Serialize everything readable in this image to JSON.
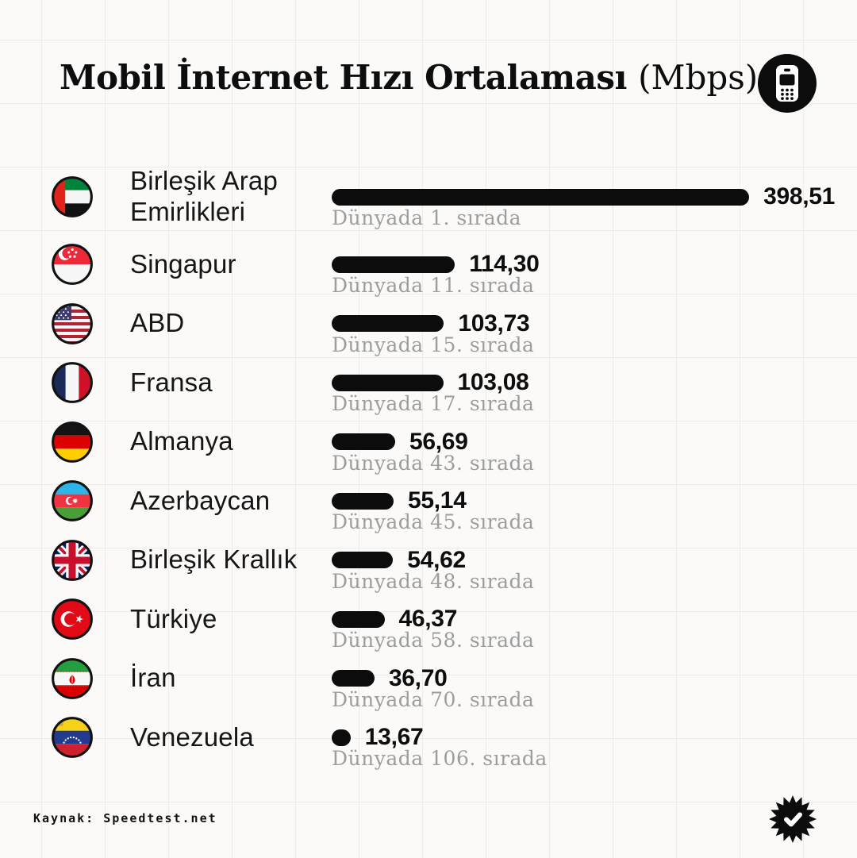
{
  "header": {
    "title_main": "Mobil İnternet Hızı Ortalaması",
    "title_unit": "(Mbps)",
    "icon": "mobile-phone-icon"
  },
  "footer": {
    "source_label": "Kaynak: Speedtest.net",
    "badge_icon": "starburst-check-icon"
  },
  "colors": {
    "background": "#fbfaf8",
    "grid_line": "#eeece9",
    "bar": "#0c0c0c",
    "title_text": "#0d0d0d",
    "country_text": "#161616",
    "rank_text": "#9d9d9d"
  },
  "chart_data": {
    "type": "bar",
    "orientation": "horizontal",
    "title": "Mobil İnternet Hızı Ortalaması (Mbps)",
    "unit": "Mbps",
    "source": "Kaynak: Speedtest.net",
    "xlim": [
      0,
      400
    ],
    "grid": "subtle background squares, no axes",
    "value_format": "comma decimal",
    "categories": [
      "Birleşik Arap Emirlikleri",
      "Singapur",
      "ABD",
      "Fransa",
      "Almanya",
      "Azerbaycan",
      "Birleşik Krallık",
      "Türkiye",
      "İran",
      "Venezuela"
    ],
    "values": [
      398.51,
      114.3,
      103.73,
      103.08,
      56.69,
      55.14,
      54.62,
      46.37,
      36.7,
      13.67
    ],
    "rows": [
      {
        "country": "Birleşik Arap Emirlikleri",
        "flag": "uae",
        "mbps": 398.51,
        "value_label": "398,51",
        "rank": 1,
        "rank_label": "Dünyada 1. sırada"
      },
      {
        "country": "Singapur",
        "flag": "singapore",
        "mbps": 114.3,
        "value_label": "114,30",
        "rank": 11,
        "rank_label": "Dünyada 11. sırada"
      },
      {
        "country": "ABD",
        "flag": "usa",
        "mbps": 103.73,
        "value_label": "103,73",
        "rank": 15,
        "rank_label": "Dünyada 15. sırada"
      },
      {
        "country": "Fransa",
        "flag": "france",
        "mbps": 103.08,
        "value_label": "103,08",
        "rank": 17,
        "rank_label": "Dünyada 17. sırada"
      },
      {
        "country": "Almanya",
        "flag": "germany",
        "mbps": 56.69,
        "value_label": "56,69",
        "rank": 43,
        "rank_label": "Dünyada 43. sırada"
      },
      {
        "country": "Azerbaycan",
        "flag": "azerbaijan",
        "mbps": 55.14,
        "value_label": "55,14",
        "rank": 45,
        "rank_label": "Dünyada 45. sırada"
      },
      {
        "country": "Birleşik Krallık",
        "flag": "united-kingdom",
        "mbps": 54.62,
        "value_label": "54,62",
        "rank": 48,
        "rank_label": "Dünyada 48. sırada"
      },
      {
        "country": "Türkiye",
        "flag": "turkey",
        "mbps": 46.37,
        "value_label": "46,37",
        "rank": 58,
        "rank_label": "Dünyada 58. sırada"
      },
      {
        "country": "İran",
        "flag": "iran",
        "mbps": 36.7,
        "value_label": "36,70",
        "rank": 70,
        "rank_label": "Dünyada 70. sırada"
      },
      {
        "country": "Venezuela",
        "flag": "venezuela",
        "mbps": 13.67,
        "value_label": "13,67",
        "rank": 106,
        "rank_label": "Dünyada 106. sırada"
      }
    ]
  }
}
